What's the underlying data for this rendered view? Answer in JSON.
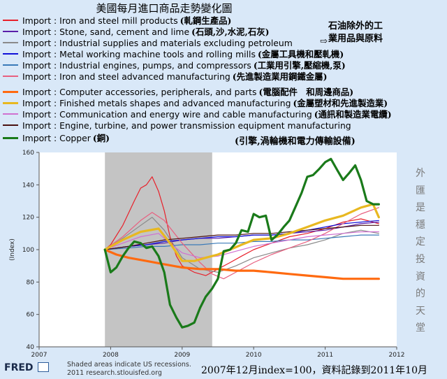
{
  "title": "美國每月進口商品走勢變化圖",
  "legend": [
    {
      "name": "Import : Iron and steel mill products",
      "note": "(軋鋼生產品)",
      "color": "#e8202a",
      "width": 1.2
    },
    {
      "name": "Import : Stone, sand, cement and lime",
      "note": "(石頭,沙,水泥,石灰)",
      "color": "#5a1ea8",
      "width": 1.2
    },
    {
      "name": "Import : Industrial supplies and materials excluding petroleum",
      "note": "",
      "color": "#8a8a8a",
      "width": 1.2
    },
    {
      "name": "Import : Metal working machine tools and rolling mills",
      "note": "(金屬工具機和壓軋機)",
      "color": "#1010d8",
      "width": 1.2
    },
    {
      "name": "Import : Industrial engines, pumps, and compressors",
      "note": "(工業用引擎,壓縮機,泵)",
      "color": "#3a7ab8",
      "width": 1.2
    },
    {
      "name": "Import : Iron and steel advanced manufacturing",
      "note": "(先進製造業用鋼鐵金屬)",
      "color": "#e86080",
      "width": 1.2
    },
    {
      "name": "Import : Computer accessories, peripherals, and parts",
      "note": "(電腦配件　和周邊商品)",
      "color": "#ff6a10",
      "width": 3.2
    },
    {
      "name": "Import : Finished metals shapes and advanced manufacturing",
      "note": "(金屬塑材和先進製造業)",
      "color": "#e8b820",
      "width": 3.2
    },
    {
      "name": "Import : Communication and energy wire and cable manufacturing",
      "note": "(通訊和製造業電纜)",
      "color": "#d070d0",
      "width": 1.2
    },
    {
      "name": "Import : Engine, turbine, and power transmission equipment manufacturing",
      "note": "",
      "color": "#4a1010",
      "width": 1.2
    },
    {
      "name": "Import : Copper",
      "note": "(銅)",
      "color": "#1a7a1a",
      "width": 3.2
    }
  ],
  "side_notes": {
    "petroleum_note_line1": "石油除外的工",
    "petroleum_note_line2": "業用品與原料",
    "engine_note": "(引擎,渦輪機和電力傳輸設備)"
  },
  "vertical_note": [
    "外",
    "匯",
    "是",
    "穩",
    "定",
    "投",
    "資",
    "的",
    "天",
    "堂"
  ],
  "footer": {
    "logo": "FRED",
    "shade_line1": "Shaded areas indicate US recessions.",
    "shade_line2": "2011 research.stlouisfed.org",
    "index_note": "2007年12月index=100，資料記錄到2011年10月"
  },
  "chart_data": {
    "type": "line",
    "ylabel": "(Index)",
    "xlim": [
      2007.0,
      2012.0
    ],
    "ylim": [
      40,
      160
    ],
    "y_ticks": [
      40,
      60,
      80,
      100,
      120,
      140,
      160
    ],
    "x_ticks": [
      2007,
      2008,
      2009,
      2010,
      2011,
      2012
    ],
    "recession": [
      2007.92,
      2009.42
    ],
    "grid": false,
    "series": [
      {
        "name": "Import : Iron and steel mill products",
        "x": [
          2007.92,
          2008.0,
          2008.17,
          2008.33,
          2008.42,
          2008.5,
          2008.58,
          2008.67,
          2008.75,
          2008.83,
          2008.92,
          2009.0,
          2009.17,
          2009.33,
          2009.5,
          2009.67,
          2009.83,
          2010.0,
          2010.25,
          2010.5,
          2010.75,
          2011.0,
          2011.25,
          2011.5,
          2011.75
        ],
        "values": [
          100,
          103,
          115,
          130,
          138,
          140,
          145,
          136,
          124,
          108,
          96,
          90,
          86,
          84,
          88,
          92,
          96,
          100,
          104,
          108,
          110,
          113,
          117,
          119,
          116
        ]
      },
      {
        "name": "Import : Stone, sand, cement and lime",
        "x": [
          2007.92,
          2008.25,
          2008.5,
          2008.75,
          2009.0,
          2009.25,
          2009.5,
          2009.75,
          2010.0,
          2010.25,
          2010.5,
          2010.75,
          2011.0,
          2011.25,
          2011.5,
          2011.75
        ],
        "values": [
          100,
          102,
          103,
          104,
          106,
          107,
          107,
          108,
          109,
          109,
          110,
          111,
          112,
          114,
          116,
          117
        ]
      },
      {
        "name": "Import : Industrial supplies and materials excluding petroleum",
        "x": [
          2007.92,
          2008.17,
          2008.42,
          2008.58,
          2008.75,
          2009.0,
          2009.25,
          2009.5,
          2009.75,
          2010.0,
          2010.25,
          2010.5,
          2010.75,
          2011.0,
          2011.25,
          2011.5,
          2011.75
        ],
        "values": [
          100,
          107,
          115,
          120,
          112,
          95,
          88,
          86,
          90,
          95,
          98,
          101,
          103,
          106,
          110,
          112,
          110
        ]
      },
      {
        "name": "Import : Metal working machine tools and rolling mills",
        "x": [
          2007.92,
          2008.25,
          2008.5,
          2008.75,
          2009.0,
          2009.25,
          2009.5,
          2009.75,
          2010.0,
          2010.25,
          2010.5,
          2010.75,
          2011.0,
          2011.25,
          2011.5,
          2011.75
        ],
        "values": [
          100,
          102,
          103,
          105,
          106,
          107,
          108,
          108,
          109,
          109,
          110,
          112,
          114,
          116,
          117,
          118
        ]
      },
      {
        "name": "Import : Industrial engines, pumps, and compressors",
        "x": [
          2007.92,
          2008.25,
          2008.5,
          2008.75,
          2009.0,
          2009.25,
          2009.5,
          2009.75,
          2010.0,
          2010.25,
          2010.5,
          2010.75,
          2011.0,
          2011.25,
          2011.5,
          2011.75
        ],
        "values": [
          100,
          101,
          102,
          102,
          103,
          103,
          104,
          104,
          105,
          105,
          106,
          106,
          107,
          108,
          109,
          109
        ]
      },
      {
        "name": "Import : Iron and steel advanced manufacturing",
        "x": [
          2007.92,
          2008.17,
          2008.42,
          2008.58,
          2008.75,
          2009.0,
          2009.25,
          2009.42,
          2009.58,
          2009.75,
          2010.0,
          2010.25,
          2010.5,
          2010.75,
          2011.0,
          2011.25,
          2011.5,
          2011.75
        ],
        "values": [
          100,
          108,
          118,
          123,
          118,
          104,
          92,
          85,
          82,
          86,
          92,
          97,
          101,
          105,
          110,
          116,
          122,
          126
        ]
      },
      {
        "name": "Import : Computer accessories, peripherals, and parts",
        "x": [
          2007.92,
          2008.08,
          2008.25,
          2008.5,
          2008.75,
          2009.0,
          2009.25,
          2009.5,
          2009.75,
          2010.0,
          2010.25,
          2010.5,
          2010.75,
          2011.0,
          2011.25,
          2011.5,
          2011.75
        ],
        "values": [
          100,
          97,
          95,
          93,
          91,
          89,
          88,
          88,
          87,
          87,
          86,
          85,
          84,
          83,
          82,
          82,
          82
        ]
      },
      {
        "name": "Import : Finished metals shapes and advanced manufacturing",
        "x": [
          2007.92,
          2008.17,
          2008.42,
          2008.67,
          2008.83,
          2009.0,
          2009.17,
          2009.33,
          2009.5,
          2009.67,
          2009.83,
          2010.0,
          2010.25,
          2010.5,
          2010.75,
          2011.0,
          2011.25,
          2011.5,
          2011.67,
          2011.75
        ],
        "values": [
          100,
          106,
          111,
          113,
          104,
          93,
          93,
          95,
          97,
          100,
          103,
          106,
          107,
          110,
          114,
          118,
          121,
          126,
          128,
          120
        ]
      },
      {
        "name": "Import : Communication and energy wire and cable manufacturing",
        "x": [
          2007.92,
          2008.17,
          2008.42,
          2008.67,
          2008.83,
          2009.0,
          2009.25,
          2009.5,
          2009.75,
          2010.0,
          2010.25,
          2010.5,
          2010.75,
          2011.0,
          2011.25,
          2011.5,
          2011.75
        ],
        "values": [
          100,
          104,
          108,
          110,
          104,
          98,
          95,
          96,
          99,
          102,
          104,
          106,
          108,
          109,
          110,
          111,
          111
        ]
      },
      {
        "name": "Import : Engine, turbine, and power transmission equipment manufacturing",
        "x": [
          2007.92,
          2008.25,
          2008.5,
          2008.75,
          2009.0,
          2009.25,
          2009.5,
          2009.75,
          2010.0,
          2010.25,
          2010.5,
          2010.75,
          2011.0,
          2011.25,
          2011.5,
          2011.75
        ],
        "values": [
          100,
          102,
          104,
          106,
          107,
          108,
          109,
          109,
          110,
          110,
          111,
          112,
          113,
          114,
          115,
          115
        ]
      },
      {
        "name": "Import : Copper",
        "x": [
          2007.92,
          2008.0,
          2008.08,
          2008.17,
          2008.25,
          2008.33,
          2008.42,
          2008.5,
          2008.58,
          2008.67,
          2008.75,
          2008.83,
          2008.92,
          2009.0,
          2009.08,
          2009.17,
          2009.25,
          2009.33,
          2009.42,
          2009.5,
          2009.58,
          2009.67,
          2009.75,
          2009.83,
          2009.92,
          2010.0,
          2010.08,
          2010.17,
          2010.25,
          2010.33,
          2010.42,
          2010.5,
          2010.58,
          2010.67,
          2010.75,
          2010.83,
          2010.92,
          2011.0,
          2011.08,
          2011.17,
          2011.25,
          2011.33,
          2011.42,
          2011.5,
          2011.58,
          2011.67,
          2011.75
        ],
        "values": [
          100,
          86,
          89,
          96,
          101,
          105,
          104,
          101,
          102,
          96,
          86,
          66,
          58,
          52,
          53,
          55,
          64,
          71,
          76,
          82,
          99,
          100,
          104,
          112,
          111,
          122,
          120,
          121,
          106,
          109,
          114,
          118,
          126,
          135,
          145,
          146,
          150,
          154,
          156,
          149,
          143,
          147,
          152,
          143,
          130,
          128,
          128
        ]
      }
    ]
  }
}
